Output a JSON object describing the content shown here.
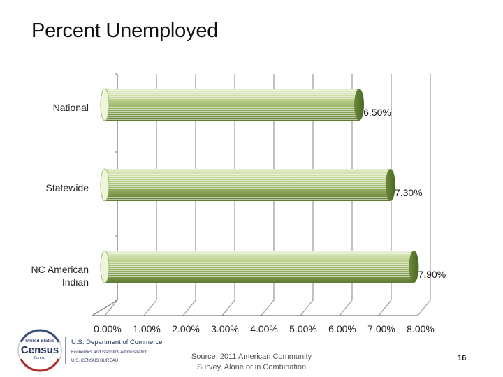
{
  "slide": {
    "title": "Percent Unemployed",
    "source_line1": "Source: 2011 American Community",
    "source_line2": "Survey, Alone or in Combination",
    "page_number": "16"
  },
  "logo": {
    "brand_top": "United States",
    "brand_main": "Census",
    "brand_bottom": "Bureau",
    "agency_line1": "U.S. Department of Commerce",
    "agency_line2": "Economics and Statistics Administration",
    "agency_line3": "U.S. CENSUS BUREAU"
  },
  "chart_data": {
    "type": "bar",
    "orientation": "horizontal",
    "style": "3d-cylinder",
    "categories": [
      "National",
      "Statewide",
      "NC American Indian"
    ],
    "category_label_lines": [
      [
        "National"
      ],
      [
        "Statewide"
      ],
      [
        "NC American",
        "Indian"
      ]
    ],
    "values": [
      6.5,
      7.3,
      7.9
    ],
    "value_labels": [
      "6.50%",
      "7.30%",
      "7.90%"
    ],
    "xlim": [
      0,
      8
    ],
    "x_ticks": [
      0,
      1,
      2,
      3,
      4,
      5,
      6,
      7,
      8
    ],
    "x_tick_labels": [
      "0.00%",
      "1.00%",
      "2.00%",
      "3.00%",
      "4.00%",
      "5.00%",
      "6.00%",
      "7.00%",
      "8.00%"
    ],
    "grid": true,
    "legend": "none",
    "colors": {
      "bar": "#8fa860",
      "bar_light": "#cfe0a8",
      "bar_dark": "#5d7a2e",
      "grid": "#9a9a9a"
    }
  }
}
